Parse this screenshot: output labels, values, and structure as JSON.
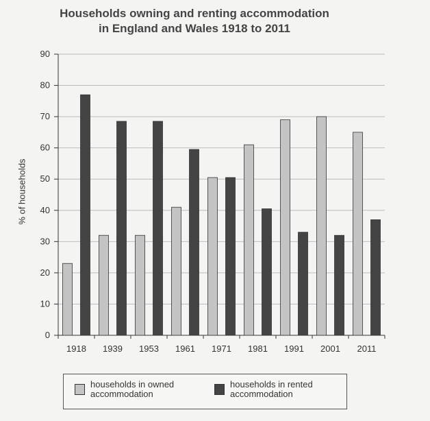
{
  "chart_data": {
    "type": "bar",
    "title_line1": "Households owning and renting accommodation",
    "title_line2": "in England and Wales 1918 to 2011",
    "xlabel": "",
    "ylabel": "% of households",
    "ylim": [
      0,
      90
    ],
    "yticks": [
      0,
      10,
      20,
      30,
      40,
      50,
      60,
      70,
      80,
      90
    ],
    "categories": [
      "1918",
      "1939",
      "1953",
      "1961",
      "1971",
      "1981",
      "1991",
      "2001",
      "2011"
    ],
    "series": [
      {
        "name": "households in owned accommodation",
        "color": "#c4c4c4",
        "values": [
          23,
          32,
          32,
          41,
          50.5,
          61,
          69,
          70,
          65
        ]
      },
      {
        "name": "households in rented accommodation",
        "color": "#444444",
        "values": [
          77,
          68.5,
          68.5,
          59.5,
          50.5,
          40.5,
          33,
          32,
          37
        ]
      }
    ],
    "grid": true,
    "legend_position": "bottom"
  }
}
